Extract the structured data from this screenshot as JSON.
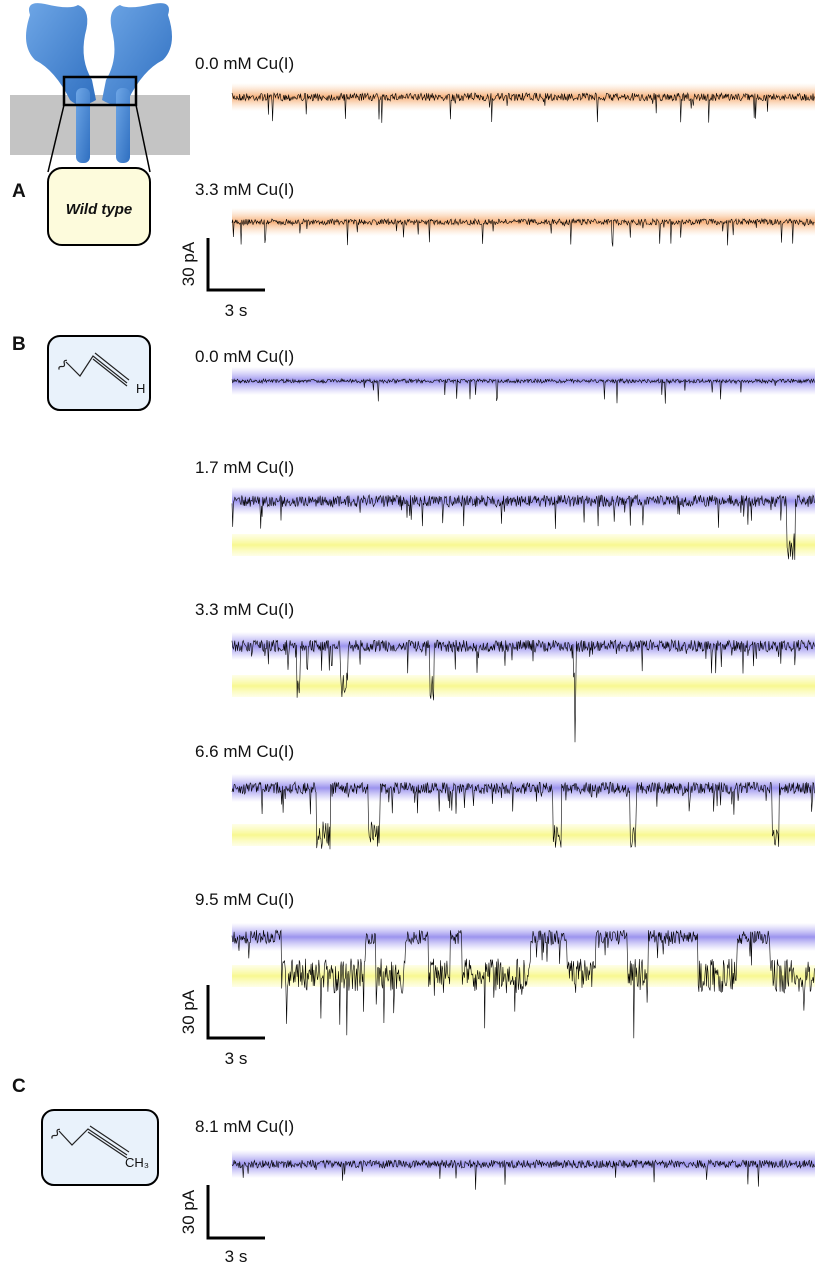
{
  "panels": [
    {
      "label": "A",
      "box_text": "Wild type",
      "traces": [
        {
          "label": "0.0 mM Cu(I)"
        },
        {
          "label": "3.3 mM Cu(I)"
        }
      ],
      "scale": {
        "current": "30 pA",
        "time": "3 s"
      }
    },
    {
      "label": "B",
      "box_text": "H",
      "traces": [
        {
          "label": "0.0 mM Cu(I)"
        },
        {
          "label": "1.7 mM Cu(I)"
        },
        {
          "label": "3.3 mM Cu(I)"
        },
        {
          "label": "6.6 mM Cu(I)"
        },
        {
          "label": "9.5 mM Cu(I)"
        }
      ],
      "scale": {
        "current": "30 pA",
        "time": "3 s"
      }
    },
    {
      "label": "C",
      "box_text": "CH₃",
      "traces": [
        {
          "label": "8.1 mM Cu(I)"
        }
      ],
      "scale": {
        "current": "30 pA",
        "time": "3 s"
      }
    }
  ]
}
